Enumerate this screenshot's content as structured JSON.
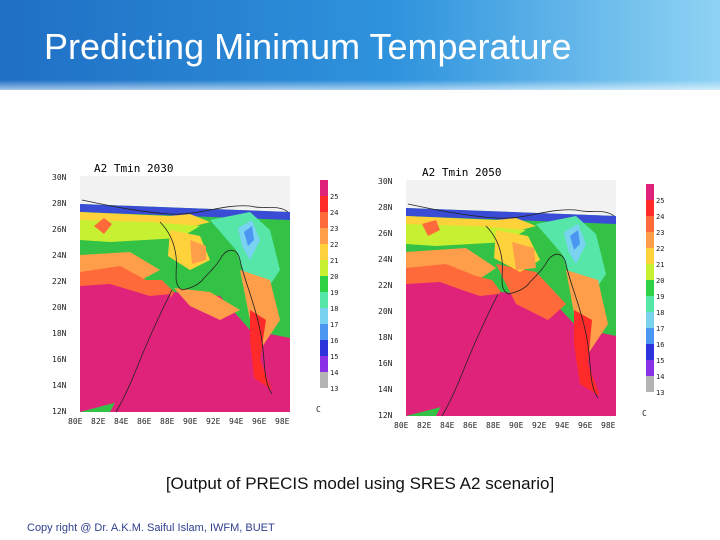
{
  "slide": {
    "title": "Predicting Minimum Temperature",
    "caption": "[Output of PRECIS model using SRES A2 scenario]",
    "copyright": "Copy right @ Dr. A.K.M. Saiful Islam, IWFM, BUET"
  },
  "maps": [
    {
      "title": "A2 Tmin 2030",
      "lat_labels": [
        "30N",
        "28N",
        "26N",
        "24N",
        "22N",
        "20N",
        "18N",
        "16N",
        "14N",
        "12N"
      ],
      "lon_labels": [
        "80E",
        "82E",
        "84E",
        "86E",
        "88E",
        "90E",
        "92E",
        "94E",
        "96E",
        "98E"
      ],
      "colorbar_labels": [
        "25",
        "24",
        "23",
        "22",
        "21",
        "20",
        "19",
        "18",
        "17",
        "16",
        "15",
        "14",
        "13"
      ],
      "unit": "C"
    },
    {
      "title": "A2 Tmin 2050",
      "lat_labels": [
        "30N",
        "28N",
        "26N",
        "24N",
        "22N",
        "20N",
        "18N",
        "16N",
        "14N",
        "12N"
      ],
      "lon_labels": [
        "80E",
        "82E",
        "84E",
        "86E",
        "88E",
        "90E",
        "92E",
        "94E",
        "96E",
        "98E"
      ],
      "colorbar_labels": [
        "25",
        "24",
        "23",
        "22",
        "21",
        "20",
        "19",
        "18",
        "17",
        "16",
        "15",
        "14",
        "13"
      ],
      "unit": "C"
    }
  ],
  "colorbar_colors": [
    "#e0237a",
    "#ff2a2a",
    "#ff6a3a",
    "#ff9e4a",
    "#ffd23c",
    "#c8f032",
    "#2fd246",
    "#55e6a8",
    "#78d2f0",
    "#4b96f0",
    "#2c32dc",
    "#8c32e6",
    "#b4b4b4"
  ]
}
